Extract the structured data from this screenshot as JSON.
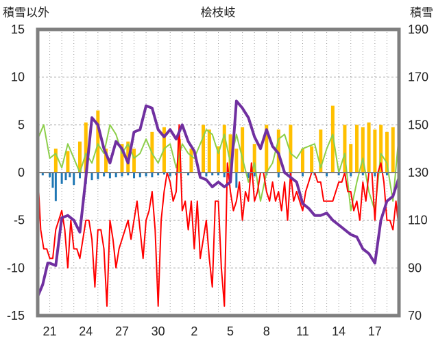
{
  "chart_data": {
    "type": "line",
    "title": "桧枝岐",
    "ylabel_left": "積雪以外",
    "ylabel_right": "積雪",
    "ylim_left": [
      -15,
      15
    ],
    "ylim_right": [
      70,
      190
    ],
    "yticks_left": [
      "15",
      "10",
      "5",
      "0",
      "-5",
      "-10",
      "-15"
    ],
    "yticks_right": [
      "190",
      "170",
      "150",
      "130",
      "110",
      "90",
      "70"
    ],
    "xticks": [
      "21",
      "24",
      "27",
      "30",
      "2",
      "5",
      "8",
      "11",
      "14",
      "17"
    ],
    "grid": true,
    "colors": {
      "temp_max": "#8dcf4a",
      "temp_min": "#ff0000",
      "snow_depth": "#7030a0",
      "snowfall": "#ffc000",
      "depth_change": "#1f77b4",
      "frame": "#7f7f7f",
      "zero_line": "#808080"
    },
    "series": [
      {
        "key": "temp_max",
        "axis": "left",
        "hours": [
          0,
          12,
          24,
          36,
          48,
          60,
          72,
          84,
          96,
          108,
          120,
          132,
          144,
          156,
          168,
          180,
          192,
          204,
          216,
          228,
          240,
          252,
          264,
          276,
          288,
          300,
          312,
          324,
          336,
          348,
          360,
          372,
          384,
          396,
          408,
          420,
          432,
          444,
          456,
          468,
          480,
          492,
          504,
          516,
          528,
          552,
          564,
          576,
          588,
          600,
          612,
          624,
          636,
          648,
          660,
          672,
          684,
          696,
          708,
          720
        ],
        "values": [
          3.5,
          5,
          1.5,
          2,
          0.5,
          3,
          1.5,
          0,
          2,
          1,
          3,
          2,
          5,
          4,
          2,
          3,
          1.5,
          2,
          3.5,
          2,
          1,
          2.5,
          3,
          0.5,
          3,
          2,
          1.5,
          3,
          4.5,
          4,
          2,
          4,
          1,
          4,
          1.5,
          -1,
          1,
          -3,
          0,
          1,
          3.5,
          4,
          2,
          1.5,
          2.5,
          3,
          0.5,
          2.5,
          4,
          0,
          2,
          -4,
          -1,
          1.5,
          -2,
          -4,
          2,
          1,
          -3,
          4
        ]
      },
      {
        "key": "temp_min",
        "axis": "left",
        "hours": [
          0,
          6,
          12,
          18,
          24,
          30,
          36,
          42,
          48,
          54,
          60,
          66,
          72,
          78,
          84,
          90,
          96,
          102,
          108,
          114,
          120,
          126,
          132,
          138,
          144,
          150,
          156,
          162,
          168,
          174,
          180,
          186,
          192,
          198,
          204,
          210,
          216,
          222,
          228,
          234,
          240,
          246,
          252,
          258,
          264,
          270,
          276,
          282,
          288,
          294,
          300,
          306,
          312,
          318,
          324,
          330,
          336,
          342,
          348,
          354,
          360,
          366,
          372,
          378,
          384,
          390,
          396,
          402,
          408,
          414,
          420,
          426,
          432,
          438,
          444,
          450,
          456,
          462,
          468,
          474,
          480,
          486,
          492,
          498,
          504,
          510,
          516,
          522,
          528,
          534,
          540,
          546,
          552,
          558,
          564,
          570,
          576,
          582,
          588,
          594,
          600,
          606,
          612,
          618,
          624,
          630,
          636,
          642,
          648,
          654,
          660,
          666,
          672,
          678,
          684,
          690,
          696,
          702,
          708,
          714,
          720
        ],
        "values": [
          0,
          -6,
          -8,
          -8,
          -9,
          -9,
          -6,
          -5,
          -4,
          -6,
          -10,
          -5,
          -8,
          -8,
          -9,
          -7,
          -5,
          -5,
          -7,
          -12,
          -6,
          -6,
          -8,
          -14,
          -5,
          -7,
          -10,
          -8,
          -7,
          -6,
          -5,
          -7,
          -5,
          -3,
          -6,
          -9,
          -5,
          -4,
          -2,
          -6,
          -14,
          -5,
          -2,
          0,
          -1,
          -3,
          -2,
          5,
          -4,
          -3,
          -6,
          -3,
          -8,
          -3,
          -9,
          -7,
          -5,
          -9,
          -12,
          -3,
          -3,
          -10,
          -14,
          1,
          -2,
          -4,
          -3,
          -1,
          -5,
          -2,
          -3,
          1,
          -3,
          -2,
          0,
          0,
          -2,
          -3,
          -1,
          -3,
          -2,
          -4,
          -1,
          -5,
          0,
          -3,
          -2,
          -3,
          -4,
          -2,
          -1,
          0,
          0,
          -1,
          -1,
          -3,
          -3,
          -3,
          -3,
          -2,
          -1,
          -1,
          0,
          -2,
          -2,
          -4,
          -3,
          -5,
          -1,
          -3,
          0,
          0,
          -5,
          0,
          1,
          -1,
          -5,
          -5,
          -6,
          -3,
          -6
        ]
      },
      {
        "key": "snow_depth",
        "axis": "right",
        "hours": [
          0,
          10,
          20,
          24,
          36,
          48,
          60,
          72,
          84,
          96,
          108,
          120,
          132,
          144,
          156,
          168,
          180,
          192,
          204,
          216,
          228,
          240,
          252,
          264,
          276,
          288,
          300,
          312,
          324,
          336,
          348,
          360,
          372,
          384,
          396,
          408,
          420,
          432,
          444,
          456,
          468,
          480,
          492,
          504,
          516,
          528,
          540,
          552,
          564,
          576,
          588,
          600,
          612,
          624,
          636,
          648,
          660,
          672,
          684,
          696,
          708,
          720
        ],
        "values": [
          78,
          83,
          92,
          92,
          91,
          111,
          112,
          110,
          105,
          128,
          153,
          150,
          140,
          134,
          143,
          140,
          134,
          147,
          148,
          158,
          157,
          148,
          145,
          148,
          144,
          150,
          143,
          139,
          128,
          127,
          124,
          126,
          124,
          126,
          160,
          157,
          153,
          145,
          140,
          148,
          141,
          138,
          130,
          128,
          126,
          117,
          115,
          112,
          112,
          113,
          110,
          108,
          106,
          104,
          103,
          98,
          96,
          92,
          110,
          118,
          120,
          128
        ]
      }
    ],
    "bars": [
      {
        "key": "snowfall",
        "axis": "right",
        "hours": [
          36,
          60,
          84,
          96,
          120,
          136,
          168,
          180,
          192,
          228,
          252,
          282,
          306,
          330,
          342,
          360,
          372,
          384,
          396,
          408,
          432,
          456,
          480,
          504,
          528,
          546,
          564,
          588,
          612,
          624,
          636,
          648,
          660,
          672,
          684,
          696,
          708,
          720
        ],
        "values": [
          10,
          9,
          13,
          21,
          26,
          10,
          12,
          13,
          10,
          17,
          19,
          14,
          10,
          20,
          18,
          11,
          20,
          16,
          10,
          19,
          12,
          20,
          18,
          20,
          10,
          11,
          18,
          28,
          20,
          12,
          20,
          19,
          21,
          18,
          20,
          17,
          19,
          15
        ]
      },
      {
        "key": "depth_change",
        "axis": "left",
        "hours": [
          10,
          24,
          30,
          36,
          48,
          56,
          64,
          72,
          84,
          96,
          108,
          120,
          132,
          144,
          156,
          168,
          180,
          192,
          204,
          216,
          228,
          240,
          252,
          264,
          276,
          300,
          324,
          336,
          348,
          360,
          372,
          384,
          396,
          420,
          432,
          456,
          480,
          504,
          528,
          552,
          576,
          600,
          624,
          648,
          672,
          696
        ],
        "values": [
          -0.3,
          -0.5,
          -1.6,
          -3,
          -1.2,
          -0.8,
          -0.5,
          -1.3,
          -0.6,
          -1.2,
          -0.8,
          -0.7,
          -0.4,
          -0.6,
          -0.5,
          -0.4,
          -0.3,
          -0.6,
          -0.5,
          -0.4,
          -0.5,
          -0.3,
          -0.2,
          -0.4,
          -0.3,
          -0.3,
          -0.5,
          -0.4,
          -0.3,
          -0.3,
          -0.5,
          -0.4,
          -1.6,
          -0.6,
          -0.4,
          -0.3,
          -0.5,
          -0.3,
          -0.4,
          -0.3,
          -0.4,
          -0.3,
          -0.4,
          -0.3,
          -0.4,
          -0.3
        ]
      }
    ]
  }
}
